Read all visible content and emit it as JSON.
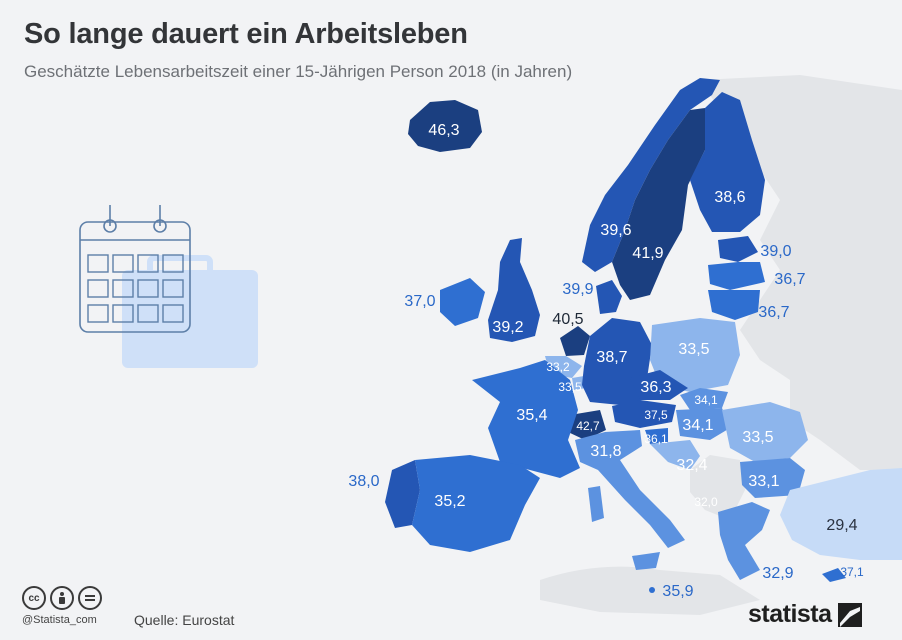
{
  "title": "So lange dauert ein Arbeitsleben",
  "subtitle": "Geschätzte Lebensarbeitszeit einer 15-Jährigen Person 2018 (in Jahren)",
  "footer": {
    "license_icons": [
      "cc-icon",
      "by-person-icon",
      "nd-equal-icon"
    ],
    "cc_text": "cc",
    "handle": "@Statista_com",
    "source": "Quelle: Eurostat",
    "brand": "statista"
  },
  "colors": {
    "background": "#f2f3f5",
    "darkest": "#1b3f80",
    "dark": "#2456b4",
    "medium": "#2f6fd1",
    "light": "#5c92e0",
    "lighter": "#8db5ec",
    "lightest": "#c6dbf7",
    "non_eu_land": "#e3e5e8",
    "label_light": "#ffffff",
    "label_outside": "#2a68c8"
  },
  "labels": {
    "iceland": "46,3",
    "finland": "38,6",
    "norway": "39,6",
    "sweden": "41,9",
    "estonia": "39,0",
    "latvia": "36,7",
    "lithuania": "36,7",
    "ireland": "37,0",
    "uk": "39,2",
    "denmark": "39,9",
    "netherlands": "40,5",
    "belgium": "33,2",
    "luxembourg": "33,5",
    "germany": "38,7",
    "poland": "33,5",
    "czechia": "36,3",
    "slovakia": "34,1",
    "austria": "37,5",
    "hungary": "34,1",
    "switzerland": "42,7",
    "slovenia": "36,1",
    "france": "35,4",
    "italy": "31,8",
    "croatia": "32,4",
    "romania": "33,5",
    "bulgaria": "33,1",
    "north_macedonia": "32,0",
    "portugal": "38,0",
    "spain": "35,2",
    "turkey": "29,4",
    "greece": "32,9",
    "malta": "35,9",
    "cyprus": "37,1"
  }
}
